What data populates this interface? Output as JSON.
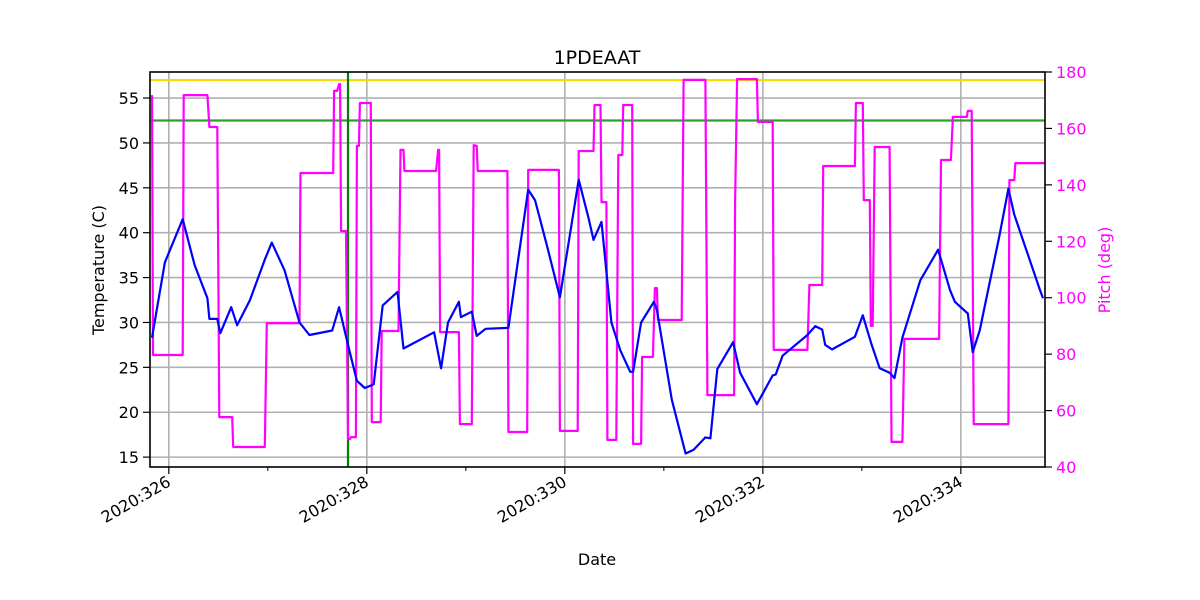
{
  "chart_data": {
    "type": "line",
    "title": "1PDEAAT",
    "xlabel": "Date",
    "ylabel": "Temperature (C)",
    "y2label": "Pitch (deg)",
    "xlim": [
      325.81,
      334.85
    ],
    "ylim": [
      13.9,
      57.9
    ],
    "y2lim": [
      40,
      180
    ],
    "grid": true,
    "x_ticks": [
      326,
      328,
      330,
      332,
      334
    ],
    "x_tick_labels": [
      "2020:326",
      "2020:328",
      "2020:330",
      "2020:332",
      "2020:334"
    ],
    "x_minor_ticks": [
      327,
      329,
      331,
      333
    ],
    "y_ticks": [
      15,
      20,
      25,
      30,
      35,
      40,
      45,
      50,
      55
    ],
    "y_tick_labels": [
      "15",
      "20",
      "25",
      "30",
      "35",
      "40",
      "45",
      "50",
      "55"
    ],
    "y2_ticks": [
      40,
      60,
      80,
      100,
      120,
      140,
      160,
      180
    ],
    "y2_tick_labels": [
      "40",
      "60",
      "80",
      "100",
      "120",
      "140",
      "160",
      "180"
    ],
    "colors": {
      "temperature": "#0000ff",
      "pitch": "#ff00ff",
      "limit_high": "#ffd700",
      "limit_low": "#2ca02c",
      "marker": "#008000",
      "y2axis": "#ff00ff"
    },
    "hlines": [
      {
        "y": 57.0,
        "color": "#ffd700"
      },
      {
        "y": 52.5,
        "color": "#2ca02c"
      }
    ],
    "vlines": [
      {
        "x": 327.81,
        "color": "#008000"
      }
    ],
    "series": [
      {
        "axis": "left",
        "color": "#0000ff",
        "points": [
          [
            325.83,
            28.3
          ],
          [
            325.96,
            36.7
          ],
          [
            326.14,
            41.5
          ],
          [
            326.26,
            36.4
          ],
          [
            326.39,
            32.7
          ],
          [
            326.41,
            30.4
          ],
          [
            326.49,
            30.4
          ],
          [
            326.52,
            28.8
          ],
          [
            326.63,
            31.7
          ],
          [
            326.69,
            29.7
          ],
          [
            326.82,
            32.5
          ],
          [
            326.97,
            37.0
          ],
          [
            327.04,
            38.9
          ],
          [
            327.17,
            35.8
          ],
          [
            327.32,
            30.0
          ],
          [
            327.42,
            28.6
          ],
          [
            327.65,
            29.1
          ],
          [
            327.72,
            31.7
          ],
          [
            327.81,
            27.5
          ],
          [
            327.9,
            23.5
          ],
          [
            327.98,
            22.7
          ],
          [
            328.07,
            23.1
          ],
          [
            328.16,
            31.9
          ],
          [
            328.31,
            33.4
          ],
          [
            328.37,
            27.1
          ],
          [
            328.68,
            28.9
          ],
          [
            328.75,
            24.9
          ],
          [
            328.82,
            30.0
          ],
          [
            328.93,
            32.3
          ],
          [
            328.95,
            30.6
          ],
          [
            329.06,
            31.2
          ],
          [
            329.11,
            28.5
          ],
          [
            329.2,
            29.3
          ],
          [
            329.43,
            29.4
          ],
          [
            329.63,
            44.8
          ],
          [
            329.7,
            43.6
          ],
          [
            329.83,
            38.1
          ],
          [
            329.95,
            32.8
          ],
          [
            330.14,
            45.9
          ],
          [
            330.24,
            41.6
          ],
          [
            330.29,
            39.2
          ],
          [
            330.37,
            41.2
          ],
          [
            330.47,
            30.0
          ],
          [
            330.56,
            26.9
          ],
          [
            330.66,
            24.5
          ],
          [
            330.69,
            24.5
          ],
          [
            330.77,
            30.0
          ],
          [
            330.9,
            32.3
          ],
          [
            330.93,
            31.4
          ],
          [
            331.08,
            21.4
          ],
          [
            331.22,
            15.4
          ],
          [
            331.3,
            15.8
          ],
          [
            331.42,
            17.2
          ],
          [
            331.47,
            17.1
          ],
          [
            331.54,
            24.8
          ],
          [
            331.7,
            27.8
          ],
          [
            331.77,
            24.4
          ],
          [
            331.94,
            20.9
          ],
          [
            332.1,
            24.1
          ],
          [
            332.13,
            24.2
          ],
          [
            332.2,
            26.3
          ],
          [
            332.45,
            28.6
          ],
          [
            332.53,
            29.6
          ],
          [
            332.6,
            29.2
          ],
          [
            332.63,
            27.5
          ],
          [
            332.7,
            27.0
          ],
          [
            332.93,
            28.4
          ],
          [
            333.01,
            30.8
          ],
          [
            333.1,
            27.5
          ],
          [
            333.18,
            24.9
          ],
          [
            333.28,
            24.4
          ],
          [
            333.33,
            23.8
          ],
          [
            333.41,
            28.3
          ],
          [
            333.59,
            34.7
          ],
          [
            333.77,
            38.1
          ],
          [
            333.89,
            33.6
          ],
          [
            333.94,
            32.3
          ],
          [
            334.07,
            31.0
          ],
          [
            334.12,
            26.7
          ],
          [
            334.19,
            29.1
          ],
          [
            334.39,
            39.7
          ],
          [
            334.48,
            44.9
          ],
          [
            334.54,
            42.0
          ],
          [
            334.8,
            33.6
          ],
          [
            334.83,
            32.7
          ]
        ]
      },
      {
        "axis": "right",
        "color": "#ff00ff",
        "points": [
          [
            325.83,
            171.8
          ],
          [
            325.84,
            79.7
          ],
          [
            326.14,
            79.7
          ],
          [
            326.15,
            171.8
          ],
          [
            326.39,
            171.8
          ],
          [
            326.41,
            160.5
          ],
          [
            326.49,
            160.5
          ],
          [
            326.51,
            57.7
          ],
          [
            326.64,
            57.7
          ],
          [
            326.65,
            47.1
          ],
          [
            326.97,
            47.1
          ],
          [
            326.99,
            91.0
          ],
          [
            327.32,
            91.0
          ],
          [
            327.33,
            144.2
          ],
          [
            327.66,
            144.2
          ],
          [
            327.67,
            173.3
          ],
          [
            327.7,
            173.3
          ],
          [
            327.72,
            175.7
          ],
          [
            327.73,
            175.7
          ],
          [
            327.74,
            123.6
          ],
          [
            327.79,
            123.6
          ],
          [
            327.81,
            49.9
          ],
          [
            327.83,
            49.9
          ],
          [
            327.84,
            50.6
          ],
          [
            327.89,
            50.6
          ],
          [
            327.9,
            153.8
          ],
          [
            327.92,
            153.8
          ],
          [
            327.93,
            169.0
          ],
          [
            328.04,
            169.0
          ],
          [
            328.05,
            55.9
          ],
          [
            328.14,
            55.9
          ],
          [
            328.15,
            88.2
          ],
          [
            328.32,
            88.2
          ],
          [
            328.34,
            152.4
          ],
          [
            328.37,
            152.4
          ],
          [
            328.38,
            144.9
          ],
          [
            328.7,
            144.9
          ],
          [
            328.72,
            152.4
          ],
          [
            328.73,
            152.4
          ],
          [
            328.74,
            87.8
          ],
          [
            328.93,
            87.8
          ],
          [
            328.94,
            55.2
          ],
          [
            329.06,
            55.2
          ],
          [
            329.08,
            154.1
          ],
          [
            329.11,
            153.8
          ],
          [
            329.12,
            144.9
          ],
          [
            329.42,
            144.9
          ],
          [
            329.43,
            52.4
          ],
          [
            329.62,
            52.4
          ],
          [
            329.63,
            145.3
          ],
          [
            329.94,
            145.3
          ],
          [
            329.95,
            52.8
          ],
          [
            330.13,
            52.8
          ],
          [
            330.14,
            152.0
          ],
          [
            330.29,
            152.0
          ],
          [
            330.3,
            168.3
          ],
          [
            330.36,
            168.3
          ],
          [
            330.37,
            133.9
          ],
          [
            330.42,
            133.9
          ],
          [
            330.43,
            49.6
          ],
          [
            330.52,
            49.6
          ],
          [
            330.54,
            150.6
          ],
          [
            330.58,
            150.6
          ],
          [
            330.59,
            168.3
          ],
          [
            330.68,
            168.3
          ],
          [
            330.69,
            48.2
          ],
          [
            330.77,
            48.2
          ],
          [
            330.78,
            79.0
          ],
          [
            330.89,
            79.0
          ],
          [
            330.91,
            103.4
          ],
          [
            330.93,
            103.4
          ],
          [
            330.94,
            92.1
          ],
          [
            331.18,
            92.1
          ],
          [
            331.2,
            177.2
          ],
          [
            331.42,
            177.2
          ],
          [
            331.44,
            65.5
          ],
          [
            331.71,
            65.5
          ],
          [
            331.72,
            133.9
          ],
          [
            331.74,
            177.5
          ],
          [
            331.94,
            177.5
          ],
          [
            331.95,
            162.3
          ],
          [
            332.1,
            162.3
          ],
          [
            332.11,
            81.5
          ],
          [
            332.45,
            81.5
          ],
          [
            332.47,
            104.5
          ],
          [
            332.6,
            104.5
          ],
          [
            332.61,
            146.7
          ],
          [
            332.93,
            146.7
          ],
          [
            332.94,
            169.0
          ],
          [
            333.01,
            169.0
          ],
          [
            333.02,
            134.6
          ],
          [
            333.08,
            134.6
          ],
          [
            333.09,
            90.0
          ],
          [
            333.11,
            90.0
          ],
          [
            333.13,
            153.4
          ],
          [
            333.28,
            153.4
          ],
          [
            333.3,
            48.9
          ],
          [
            333.41,
            48.9
          ],
          [
            333.43,
            85.4
          ],
          [
            333.78,
            85.4
          ],
          [
            333.8,
            148.8
          ],
          [
            333.9,
            148.8
          ],
          [
            333.92,
            164.1
          ],
          [
            334.06,
            164.1
          ],
          [
            334.07,
            166.2
          ],
          [
            334.11,
            166.2
          ],
          [
            334.13,
            55.2
          ],
          [
            334.48,
            55.2
          ],
          [
            334.49,
            141.7
          ],
          [
            334.54,
            141.7
          ],
          [
            334.55,
            147.7
          ],
          [
            334.85,
            147.7
          ]
        ]
      }
    ]
  }
}
